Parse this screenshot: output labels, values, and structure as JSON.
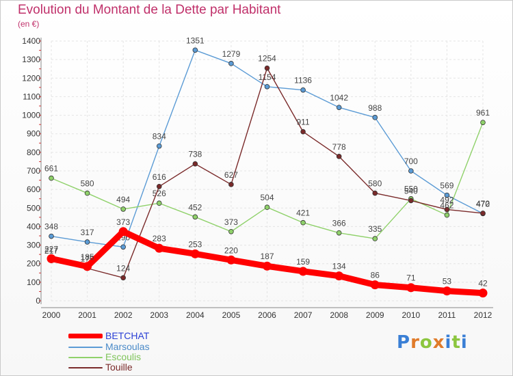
{
  "header": {
    "title": "Evolution du Montant de la Dette par Habitant",
    "unit": "(en €)"
  },
  "logo": {
    "text": "Proxiti",
    "letters": [
      "P",
      "r",
      "o",
      "x",
      "i",
      "t",
      "i"
    ],
    "colors": [
      "#3a7fd5",
      "#e07b2a",
      "#8cc63f",
      "#e07b2a",
      "#3a7fd5",
      "#8cc63f",
      "#3a7fd5"
    ]
  },
  "colors": {
    "title": "#c0306a",
    "BETCHAT": "#ff0000",
    "Marsoulas": "#5b9bd5",
    "Escoulis": "#8fd16a",
    "Touille": "#7a2a2a"
  },
  "chart_data": {
    "type": "line",
    "title": "Evolution du Montant de la Dette par Habitant",
    "ylabel": "(en €)",
    "xlabel": "",
    "x": [
      2000,
      2001,
      2002,
      2003,
      2004,
      2005,
      2006,
      2007,
      2008,
      2009,
      2010,
      2011,
      2012
    ],
    "ylim": [
      0,
      1400
    ],
    "yticks": [
      0,
      100,
      200,
      300,
      400,
      500,
      600,
      700,
      800,
      900,
      1000,
      1100,
      1200,
      1300,
      1400
    ],
    "grid": true,
    "legend": "bottom-left",
    "series": [
      {
        "name": "BETCHAT",
        "values": [
          227,
          185,
          373,
          283,
          253,
          220,
          187,
          159,
          134,
          86,
          71,
          53,
          42
        ],
        "color": "#ff0000",
        "emphasis": true
      },
      {
        "name": "Marsoulas",
        "values": [
          348,
          317,
          290,
          834,
          1351,
          1279,
          1154,
          1136,
          1042,
          988,
          700,
          569,
          470
        ],
        "color": "#5b9bd5"
      },
      {
        "name": "Escoulis",
        "values": [
          661,
          580,
          494,
          526,
          452,
          373,
          504,
          421,
          366,
          335,
          550,
          462,
          961
        ],
        "color": "#8fd16a"
      },
      {
        "name": "Touille",
        "values": [
          217,
          175,
          124,
          616,
          738,
          627,
          1254,
          911,
          778,
          580,
          540,
          492,
          472
        ],
        "color": "#7a2a2a"
      }
    ]
  }
}
